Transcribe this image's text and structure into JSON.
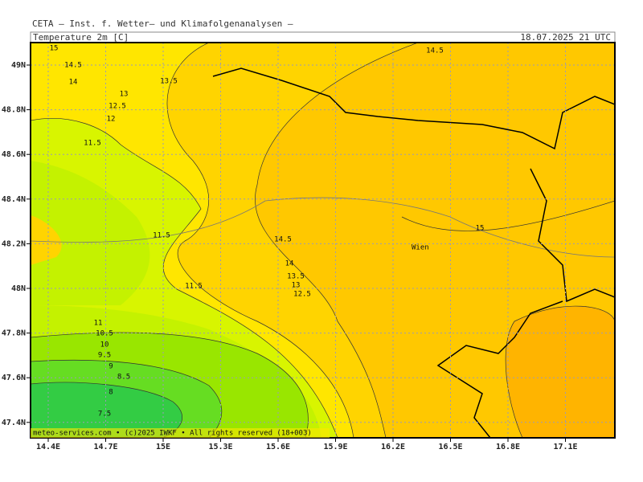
{
  "header": {
    "line": "CETA — Inst. f. Wetter— und Klimafolgenanalysen —",
    "field": "Temperature 2m [C]",
    "time": "18.07.2025 21 UTC"
  },
  "map": {
    "lon_labels": [
      "14.4E",
      "14.7E",
      "15E",
      "15.3E",
      "15.6E",
      "15.9E",
      "16.2E",
      "16.5E",
      "16.8E",
      "17.1E"
    ],
    "lat_labels": [
      "49N",
      "48.8N",
      "48.6N",
      "48.4N",
      "48.2N",
      "48N",
      "47.8N",
      "47.6N",
      "47.4N"
    ],
    "contour_labels": [
      "15",
      "14.5",
      "14",
      "13",
      "12.5",
      "12",
      "11.5",
      "13.5",
      "11.5",
      "11.5",
      "14.5",
      "14.5",
      "14",
      "13.5",
      "13",
      "12.5",
      "15",
      "11",
      "10.5",
      "10",
      "9.5",
      "9",
      "8.5",
      "8",
      "7.5"
    ],
    "place": "Wien",
    "credit": "meteo-services.com • (c)2025 IWKF • All rights reserved (18+003)"
  }
}
